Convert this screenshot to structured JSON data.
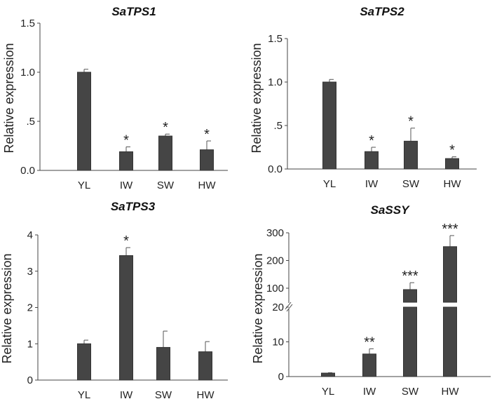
{
  "chart_data": [
    {
      "type": "bar",
      "title": "SaTPS1",
      "ylabel": "Relative expression",
      "categories": [
        "YL",
        "IW",
        "SW",
        "HW"
      ],
      "values": [
        1.0,
        0.19,
        0.35,
        0.21
      ],
      "errors": [
        0.03,
        0.05,
        0.02,
        0.09
      ],
      "significance": [
        "",
        "*",
        "*",
        "*"
      ],
      "ylim": [
        0,
        1.5
      ],
      "yticks": [
        0,
        0.5,
        1.0,
        1.5
      ],
      "ytick_labels": [
        "0.0",
        ".5",
        "1.0",
        "1.5"
      ]
    },
    {
      "type": "bar",
      "title": "SaTPS2",
      "ylabel": "Relative expression",
      "categories": [
        "YL",
        "IW",
        "SW",
        "HW"
      ],
      "values": [
        1.0,
        0.2,
        0.32,
        0.12
      ],
      "errors": [
        0.03,
        0.05,
        0.15,
        0.02
      ],
      "significance": [
        "",
        "*",
        "*",
        "*"
      ],
      "ylim": [
        0,
        1.5
      ],
      "yticks": [
        0,
        0.5,
        1.0,
        1.5
      ],
      "ytick_labels": [
        "0.0",
        ".5",
        "1.0",
        "1.5"
      ]
    },
    {
      "type": "bar",
      "title": "SaTPS3",
      "ylabel": "Relative expression",
      "categories": [
        "YL",
        "IW",
        "SW",
        "HW"
      ],
      "values": [
        1.0,
        3.43,
        0.9,
        0.78
      ],
      "errors": [
        0.1,
        0.22,
        0.45,
        0.28
      ],
      "significance": [
        "",
        "*",
        "",
        ""
      ],
      "ylim": [
        0,
        4
      ],
      "yticks": [
        0,
        1,
        2,
        3,
        4
      ],
      "ytick_labels": [
        "0",
        "1",
        "2",
        "3",
        "4"
      ]
    },
    {
      "type": "bar",
      "title": "SaSSY",
      "ylabel": "Relative expression",
      "categories": [
        "YL",
        "IW",
        "SW",
        "HW"
      ],
      "values": [
        1.0,
        6.5,
        95,
        250
      ],
      "errors": [
        0.1,
        1.5,
        25,
        40
      ],
      "significance": [
        "",
        "**",
        "***",
        "***"
      ],
      "ylim": [
        0,
        300
      ],
      "axis_break": [
        20,
        100
      ],
      "yticks": [
        0,
        10,
        20,
        100,
        200,
        300
      ],
      "ytick_labels": [
        "0",
        "10",
        "20",
        "100",
        "200",
        "300"
      ]
    }
  ]
}
